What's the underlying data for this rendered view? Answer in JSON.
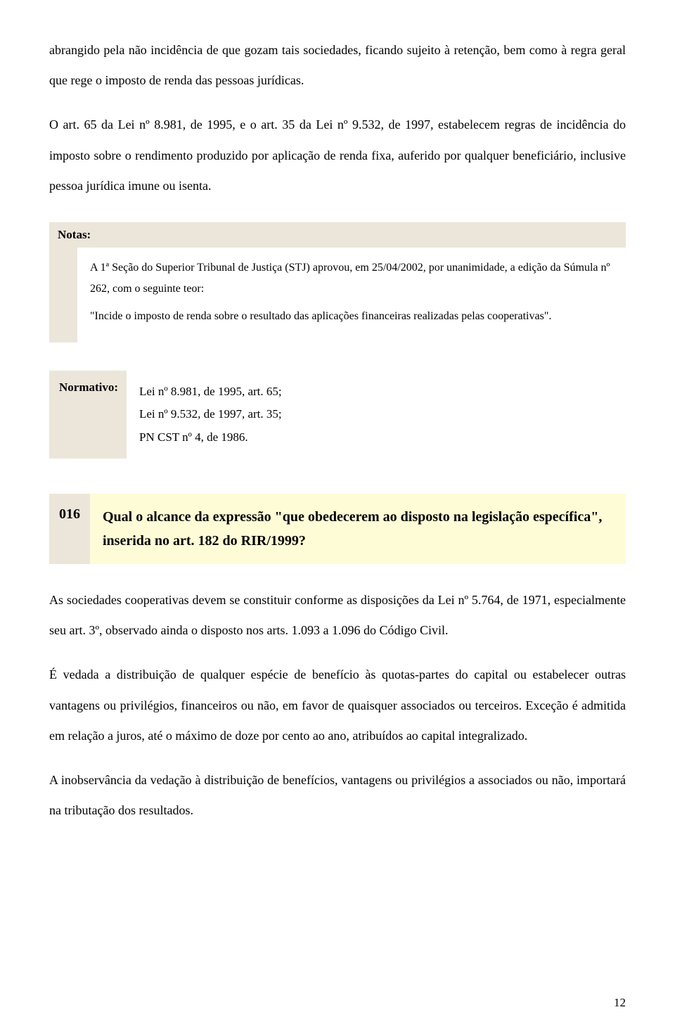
{
  "intro_paragraph": "abrangido pela não incidência de que gozam tais sociedades, ficando sujeito à retenção, bem como à regra geral que rege o imposto de renda das pessoas jurídicas.",
  "second_paragraph": "O art. 65 da Lei nº 8.981, de 1995, e o art. 35 da Lei nº 9.532, de 1997, estabelecem regras de incidência do imposto sobre o rendimento produzido por aplicação de renda fixa, auferido por qualquer beneficiário, inclusive pessoa jurídica imune ou isenta.",
  "notas_label": "Notas:",
  "notas_p1": "A 1ª Seção do Superior Tribunal de Justiça (STJ) aprovou, em 25/04/2002, por unanimidade, a edição da Súmula nº 262, com o seguinte teor:",
  "notas_p2": "\"Incide o imposto de renda sobre o resultado das aplicações financeiras realizadas pelas cooperativas\".",
  "normativo_label": "Normativo:",
  "normativo_line1": "Lei nº 8.981, de 1995, art. 65;",
  "normativo_line2": "Lei nº 9.532, de 1997, art. 35;",
  "normativo_line3": "PN CST nº 4, de 1986.",
  "question_num": "016",
  "question_text": "Qual o alcance da expressão \"que obedecerem ao disposto na legislação específica\", inserida no art. 182 do RIR/1999?",
  "answer_p1": "As sociedades cooperativas devem se constituir conforme as disposições da Lei nº 5.764, de 1971, especialmente seu art. 3º, observado ainda o disposto nos arts. 1.093 a 1.096 do Código Civil.",
  "answer_p2": "É vedada a distribuição de qualquer espécie de benefício às quotas-partes do capital ou estabelecer outras vantagens ou privilégios, financeiros ou não, em favor de quaisquer associados ou terceiros. Exceção é admitida em relação a juros, até o máximo de doze por cento ao ano, atribuídos ao capital integralizado.",
  "answer_p3": "A inobservância da vedação à distribuição de benefícios, vantagens ou privilégios a associados ou não, importará na tributação dos resultados.",
  "page_number": "12",
  "colors": {
    "beige_box": "#ece6da",
    "yellow_box": "#fefcd6",
    "text": "#000000",
    "background": "#ffffff"
  }
}
